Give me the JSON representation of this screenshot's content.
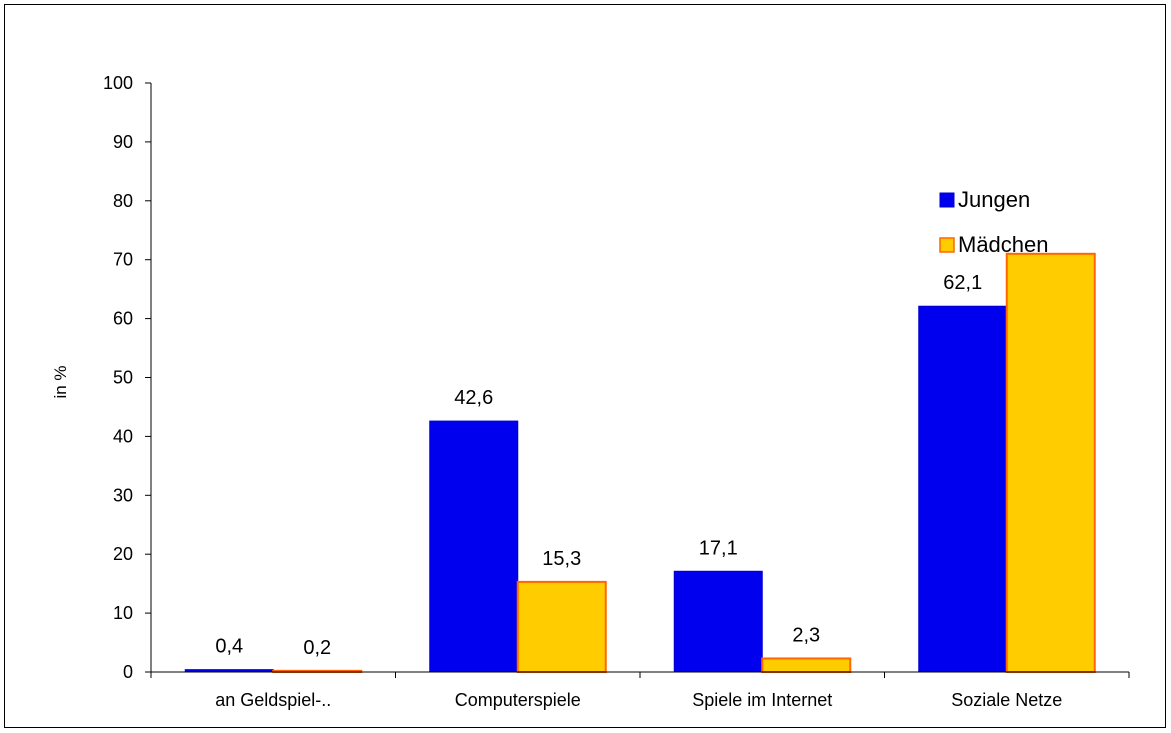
{
  "chart_data": {
    "type": "bar",
    "categories": [
      "an Geldspiel-..",
      "Computerspiele",
      "Spiele im Internet",
      "Soziale Netze"
    ],
    "series": [
      {
        "name": "Jungen",
        "values": [
          0.4,
          42.6,
          17.1,
          62.1
        ],
        "labels": [
          "0,4",
          "42,6",
          "17,1",
          "62,1"
        ],
        "color": "#0000ee",
        "border": "#0000cc"
      },
      {
        "name": "Mädchen",
        "values": [
          0.2,
          15.3,
          2.3,
          71.0
        ],
        "labels": [
          "0,2",
          "15,3",
          "2,3",
          ""
        ],
        "color": "#ffcc00",
        "border": "#ff6600"
      }
    ],
    "ylabel": "in %",
    "xlabel": "",
    "ylim": [
      0,
      100
    ],
    "yticks": [
      0,
      10,
      20,
      30,
      40,
      50,
      60,
      70,
      80,
      90,
      100
    ],
    "grid": false,
    "legend_position": "right"
  }
}
